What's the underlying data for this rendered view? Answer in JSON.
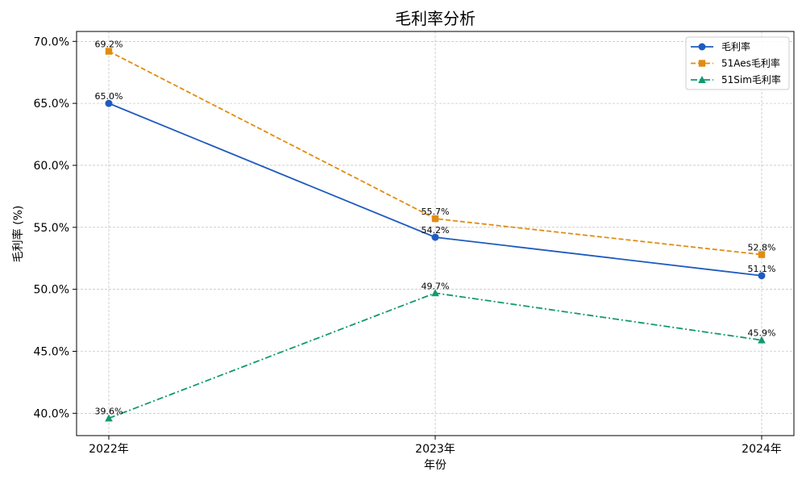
{
  "chart_data": {
    "type": "line",
    "title": "毛利率分析",
    "xlabel": "年份",
    "ylabel": "毛利率 (%)",
    "categories": [
      "2022年",
      "2023年",
      "2024年"
    ],
    "ylim": [
      38.2,
      70.8
    ],
    "yticks": [
      40.0,
      45.0,
      50.0,
      55.0,
      60.0,
      65.0,
      70.0
    ],
    "ytick_labels": [
      "40.0%",
      "45.0%",
      "50.0%",
      "55.0%",
      "60.0%",
      "65.0%",
      "70.0%"
    ],
    "grid": true,
    "legend_position": "top-right",
    "series": [
      {
        "name": "毛利率",
        "values": [
          65.0,
          54.2,
          51.1
        ],
        "labels": [
          "65.0%",
          "54.2%",
          "51.1%"
        ],
        "color": "#1f5bbf",
        "line_style": "solid",
        "marker": "circle"
      },
      {
        "name": "51Aes毛利率",
        "values": [
          69.2,
          55.7,
          52.8
        ],
        "labels": [
          "69.2%",
          "55.7%",
          "52.8%"
        ],
        "color": "#e08c10",
        "line_style": "dashed",
        "marker": "square"
      },
      {
        "name": "51Sim毛利率",
        "values": [
          39.6,
          49.7,
          45.9
        ],
        "labels": [
          "39.6%",
          "49.7%",
          "45.9%"
        ],
        "color": "#119970",
        "line_style": "dashdot",
        "marker": "triangle"
      }
    ]
  }
}
